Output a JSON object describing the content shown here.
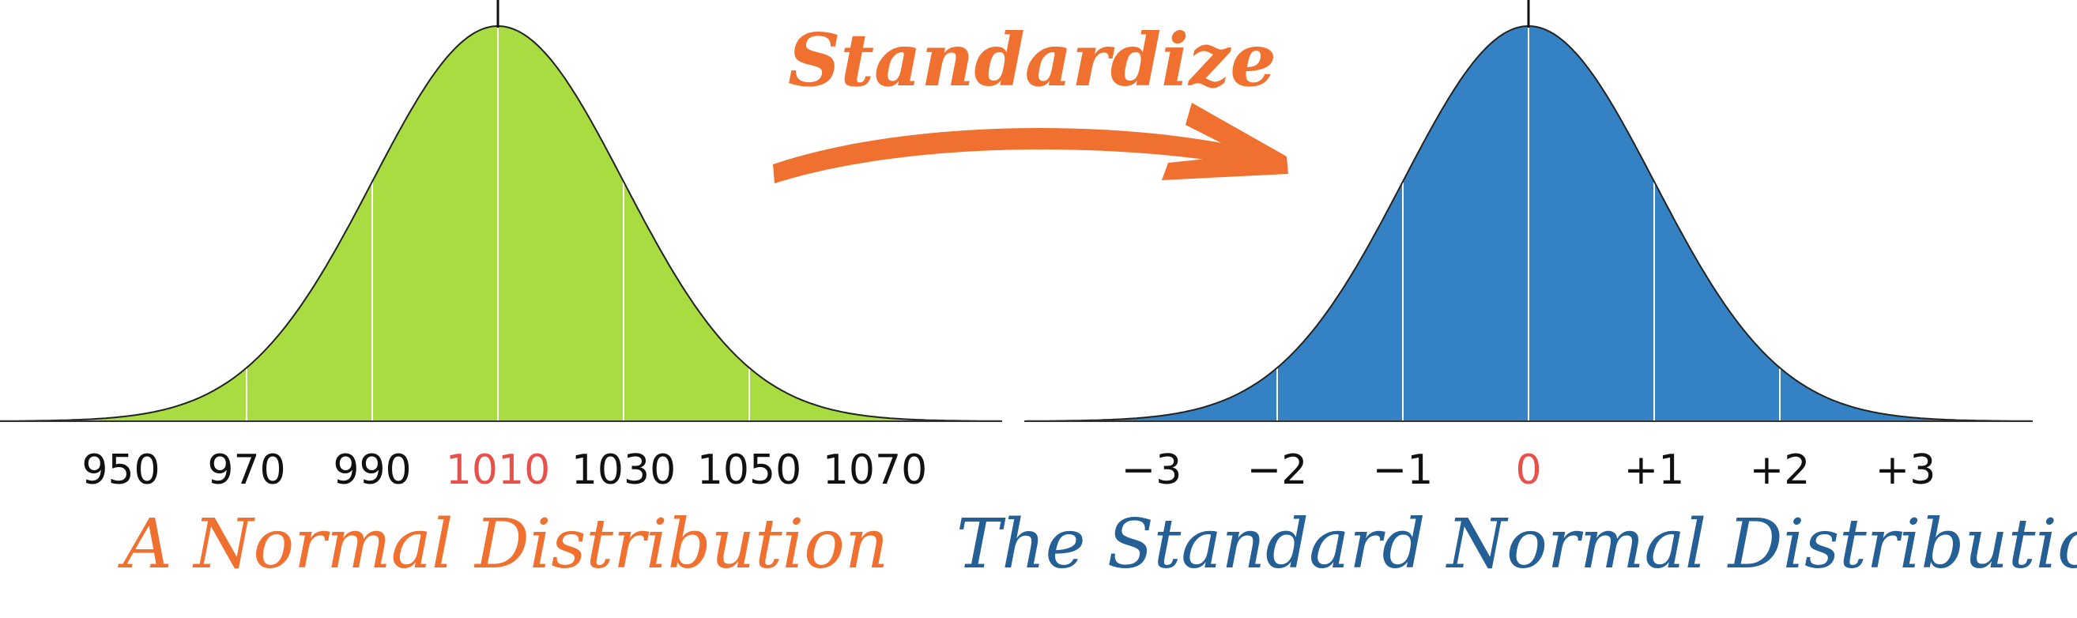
{
  "arrow": {
    "label": "Standardize",
    "color": "#f07030"
  },
  "colors": {
    "normal_fill": "#a8dc40",
    "standard_fill": "#3482c3",
    "highlight": "#e8504a",
    "tick_text": "#111111",
    "normal_caption": "#f07030",
    "standard_caption": "#245f96"
  },
  "chart_data": [
    {
      "type": "area",
      "distribution": "normal",
      "mean": 1010,
      "sd": 20,
      "xlim": [
        930,
        1090
      ],
      "ticks": [
        "950",
        "970",
        "990",
        "1010",
        "1030",
        "1050",
        "1070"
      ],
      "tick_values": [
        950,
        970,
        990,
        1010,
        1030,
        1050,
        1070
      ],
      "highlight_tick": "1010",
      "caption": "A Normal Distribution"
    },
    {
      "type": "area",
      "distribution": "standard normal",
      "mean": 0,
      "sd": 1,
      "xlim": [
        -4,
        4
      ],
      "ticks": [
        "−3",
        "−2",
        "−1",
        "0",
        "+1",
        "+2",
        "+3"
      ],
      "tick_values": [
        -3,
        -2,
        -1,
        0,
        1,
        2,
        3
      ],
      "highlight_tick": "0",
      "caption": "The Standard Normal Distribution"
    }
  ]
}
